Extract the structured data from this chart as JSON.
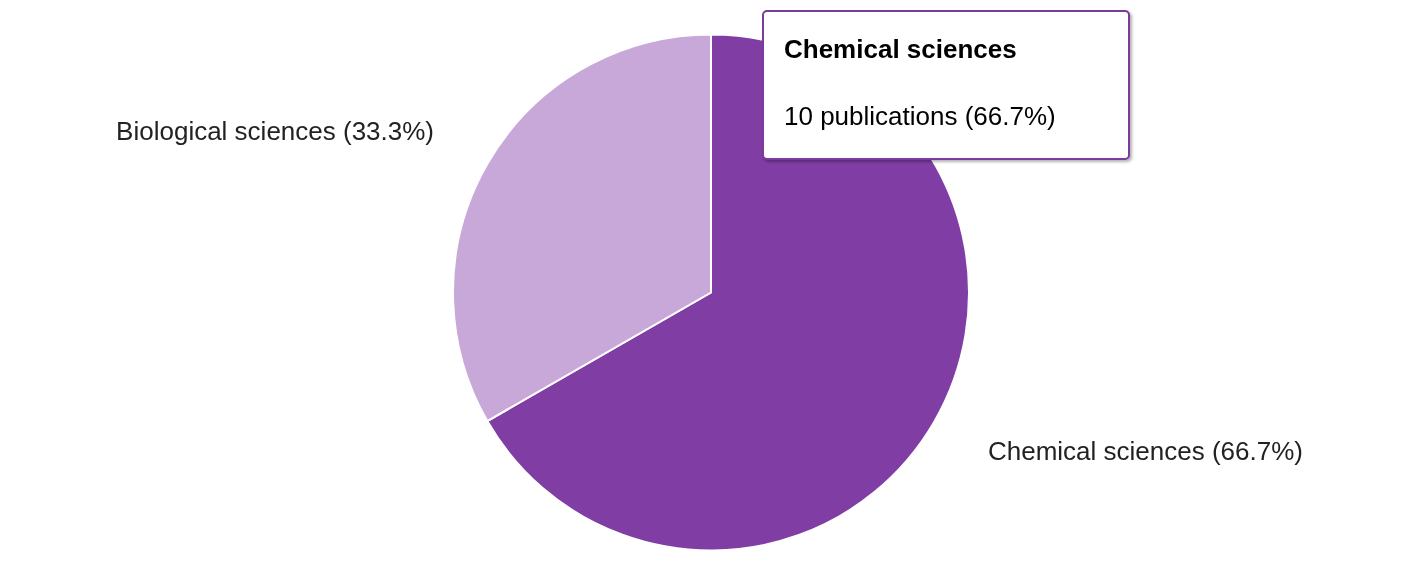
{
  "chart_data": {
    "type": "pie",
    "categories": [
      "Chemical sciences (66.7%)",
      "Biological sciences (33.3%)"
    ],
    "values": [
      66.7,
      33.3
    ],
    "colors": [
      "#803da4",
      "#c8a8d8"
    ],
    "annotations": [
      "Chemical sciences",
      "10 publications (66.7%)"
    ]
  }
}
